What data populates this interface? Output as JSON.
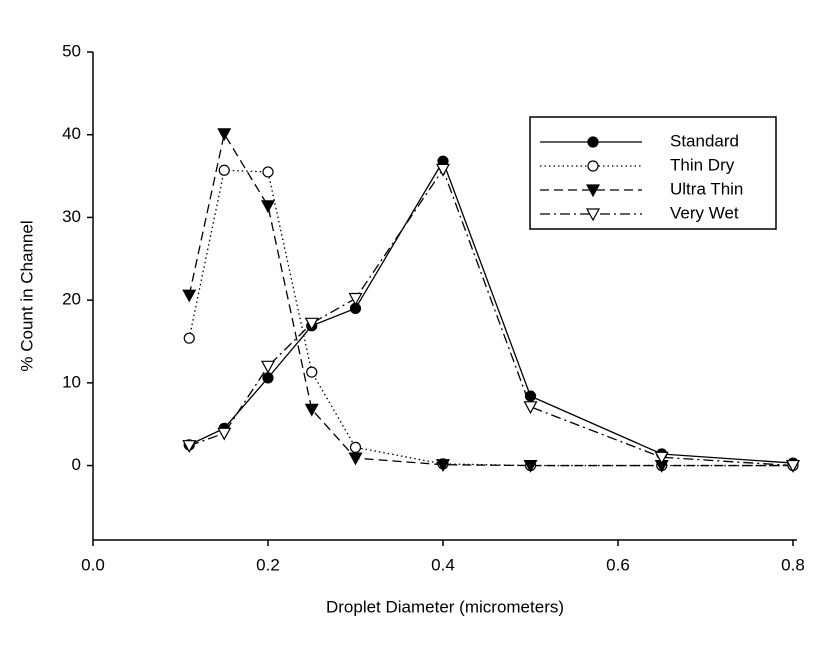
{
  "chart_data": {
    "type": "line",
    "x_label": "Droplet Diameter (micrometers)",
    "y_label": "% Count in Channel",
    "x": [
      0.11,
      0.15,
      0.2,
      0.25,
      0.3,
      0.4,
      0.5,
      0.65,
      0.8
    ],
    "series": [
      {
        "name": "Standard",
        "color": "#000000",
        "marker": "circle-filled",
        "linestyle": "solid",
        "values": [
          2.5,
          4.5,
          10.6,
          16.9,
          19.0,
          36.8,
          8.4,
          1.4,
          0.3
        ]
      },
      {
        "name": "Thin Dry",
        "color": "#000000",
        "marker": "circle-open",
        "linestyle": "dotted",
        "values": [
          15.4,
          35.7,
          35.5,
          11.3,
          2.2,
          0.2,
          0,
          0,
          0
        ]
      },
      {
        "name": "Ultra Thin",
        "color": "#000000",
        "marker": "triangle-down-filled",
        "linestyle": "dashed",
        "values": [
          20.6,
          40.1,
          31.4,
          6.8,
          0.9,
          0.1,
          0,
          0,
          0
        ]
      },
      {
        "name": "Very Wet",
        "color": "#000000",
        "marker": "triangle-down-open",
        "linestyle": "dashdot",
        "values": [
          2.4,
          3.9,
          12.0,
          17.2,
          20.2,
          35.8,
          7.1,
          1.0,
          0
        ]
      }
    ],
    "xlim": [
      0,
      0.8
    ],
    "xticks": [
      {
        "value": 0,
        "label": "0.0"
      },
      0.2,
      0.4,
      0.6,
      0.8
    ],
    "ylim": [
      -9,
      50
    ],
    "yticks": [
      0,
      10,
      20,
      30,
      40,
      50
    ],
    "grid": false,
    "legend": "upper right"
  }
}
